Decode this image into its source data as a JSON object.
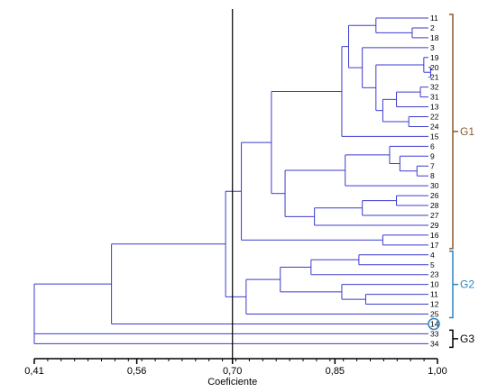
{
  "chart_data": {
    "type": "dendrogram",
    "xlabel": "Coeficiente",
    "x_ticks": [
      "0,41",
      "0,56",
      "0,70",
      "0,85",
      "1,00"
    ],
    "x_tick_values": [
      0.41,
      0.56,
      0.7,
      0.85,
      1.0
    ],
    "xlim": [
      0.41,
      1.0
    ],
    "cut_line": 0.7,
    "leaves": [
      "11",
      "2",
      "18",
      "3",
      "19",
      "20",
      "21",
      "32",
      "31",
      "13",
      "22",
      "24",
      "15",
      "6",
      "9",
      "7",
      "8",
      "30",
      "26",
      "28",
      "27",
      "29",
      "16",
      "17",
      "4",
      "5",
      "23",
      "10",
      "11",
      "12",
      "25",
      "14",
      "33",
      "34"
    ],
    "highlighted_leaf": "14",
    "merges": [
      {
        "id": "m1",
        "children": [
          "2",
          "18"
        ],
        "similarity": 0.963
      },
      {
        "id": "m2",
        "children": [
          "11",
          "m1"
        ],
        "similarity": 0.91
      },
      {
        "id": "m3",
        "children": [
          "20",
          "21"
        ],
        "similarity": 0.99
      },
      {
        "id": "m4",
        "children": [
          "19",
          "m3"
        ],
        "similarity": 0.98
      },
      {
        "id": "m5",
        "children": [
          "32",
          "31"
        ],
        "similarity": 0.975
      },
      {
        "id": "m6",
        "children": [
          "m5",
          "13"
        ],
        "similarity": 0.94
      },
      {
        "id": "m7",
        "children": [
          "22",
          "24"
        ],
        "similarity": 0.958
      },
      {
        "id": "m8",
        "children": [
          "m6",
          "m7"
        ],
        "similarity": 0.92
      },
      {
        "id": "m9",
        "children": [
          "m4",
          "m8"
        ],
        "similarity": 0.91
      },
      {
        "id": "m10",
        "children": [
          "3",
          "m9"
        ],
        "similarity": 0.89
      },
      {
        "id": "m11",
        "children": [
          "m2",
          "m10"
        ],
        "similarity": 0.87
      },
      {
        "id": "m12",
        "children": [
          "m11",
          "15"
        ],
        "similarity": 0.86
      },
      {
        "id": "m13",
        "children": [
          "7",
          "8"
        ],
        "similarity": 0.97
      },
      {
        "id": "m14",
        "children": [
          "9",
          "m13"
        ],
        "similarity": 0.945
      },
      {
        "id": "m15",
        "children": [
          "6",
          "m14"
        ],
        "similarity": 0.93
      },
      {
        "id": "m16",
        "children": [
          "m15",
          "30"
        ],
        "similarity": 0.865
      },
      {
        "id": "m17",
        "children": [
          "26",
          "28"
        ],
        "similarity": 0.94
      },
      {
        "id": "m18",
        "children": [
          "m17",
          "27"
        ],
        "similarity": 0.89
      },
      {
        "id": "m19",
        "children": [
          "m18",
          "29"
        ],
        "similarity": 0.82
      },
      {
        "id": "m20",
        "children": [
          "m16",
          "m19"
        ],
        "similarity": 0.777
      },
      {
        "id": "m21",
        "children": [
          "m12",
          "m20"
        ],
        "similarity": 0.757
      },
      {
        "id": "m22",
        "children": [
          "16",
          "17"
        ],
        "similarity": 0.92
      },
      {
        "id": "m23",
        "children": [
          "m21",
          "m22"
        ],
        "similarity": 0.713
      },
      {
        "id": "m24",
        "children": [
          "4",
          "5"
        ],
        "similarity": 0.885
      },
      {
        "id": "m25",
        "children": [
          "m24",
          "23"
        ],
        "similarity": 0.815
      },
      {
        "id": "m26",
        "children": [
          "11",
          "12"
        ],
        "similarity": 0.895
      },
      {
        "id": "m27",
        "children": [
          "10",
          "m26"
        ],
        "similarity": 0.86
      },
      {
        "id": "m28",
        "children": [
          "m25",
          "m27"
        ],
        "similarity": 0.77
      },
      {
        "id": "m29",
        "children": [
          "m28",
          "25"
        ],
        "similarity": 0.72
      },
      {
        "id": "m30",
        "children": [
          "m23",
          "m29"
        ],
        "similarity": 0.69
      },
      {
        "id": "m31",
        "children": [
          "m30",
          "14"
        ],
        "similarity": 0.523
      },
      {
        "id": "m32",
        "children": [
          "m31",
          "33"
        ],
        "similarity": 0.41
      },
      {
        "id": "m33",
        "children": [
          "m32",
          "34"
        ],
        "similarity": 0.41
      }
    ],
    "groups": [
      {
        "label": "G1",
        "leaves_from": "11",
        "leaves_to": "17",
        "color": "#8B5A2B"
      },
      {
        "label": "G2",
        "leaves_from": "4",
        "leaves_to": "25",
        "color": "#2E86C1"
      },
      {
        "label": "G3",
        "leaves_from": "33",
        "leaves_to": "34",
        "color": "#000000"
      }
    ],
    "colors": {
      "tree": "#3B3BCF",
      "axis": "#000000",
      "cut_line": "#000000",
      "highlight_circle": "#2E86C1"
    }
  }
}
